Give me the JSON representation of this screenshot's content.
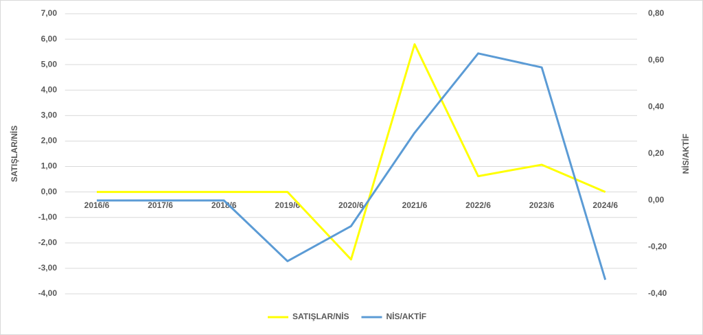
{
  "chart_data": {
    "type": "line",
    "y_label": "SATIŞLAR/NİS",
    "y2_label": "NİS/AKTİF",
    "categories": [
      "2016/6",
      "2017/6",
      "2018/6",
      "2019/6",
      "2020/6",
      "2021/6",
      "2022/6",
      "2023/6",
      "2024/6"
    ],
    "series": [
      {
        "name": "SATIŞLAR/NİS",
        "color": "#ffff00",
        "values": [
          0,
          0,
          0,
          0,
          -2.65,
          5.8,
          0.62,
          1.07,
          0
        ]
      },
      {
        "name": "NİS/AKTİF",
        "color": "#5b9bd5",
        "axis": "y2",
        "values": [
          0,
          0,
          0,
          -0.26,
          -0.11,
          0.29,
          0.63,
          0.57,
          -0.34
        ]
      }
    ],
    "ylim": [
      -4,
      7
    ],
    "yticks": [
      {
        "value": -4,
        "label": "-4,00"
      },
      {
        "value": -3,
        "label": "-3,00"
      },
      {
        "value": -2,
        "label": "-2,00"
      },
      {
        "value": -1,
        "label": "-1,00"
      },
      {
        "value": 0,
        "label": "0,00"
      },
      {
        "value": 1,
        "label": "1,00"
      },
      {
        "value": 2,
        "label": "2,00"
      },
      {
        "value": 3,
        "label": "3,00"
      },
      {
        "value": 4,
        "label": "4,00"
      },
      {
        "value": 5,
        "label": "5,00"
      },
      {
        "value": 6,
        "label": "6,00"
      },
      {
        "value": 7,
        "label": "7,00"
      }
    ],
    "y2lim": [
      -0.4,
      0.8
    ],
    "y2ticks": [
      {
        "value": -0.4,
        "label": "-0,40"
      },
      {
        "value": -0.2,
        "label": "-0,20"
      },
      {
        "value": 0,
        "label": "0,00"
      },
      {
        "value": 0.2,
        "label": "0,20"
      },
      {
        "value": 0.4,
        "label": "0,40"
      },
      {
        "value": 0.6,
        "label": "0,60"
      },
      {
        "value": 0.8,
        "label": "0,80"
      }
    ],
    "grid": true,
    "legend": "bottom"
  }
}
